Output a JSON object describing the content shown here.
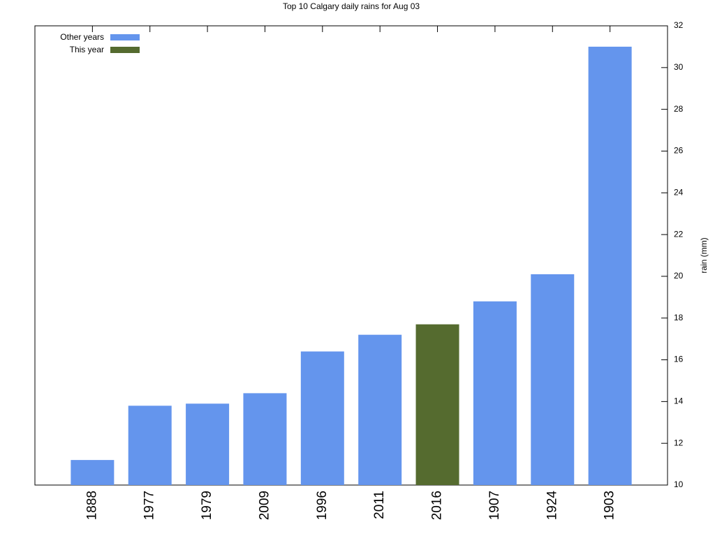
{
  "chart_data": {
    "type": "bar",
    "title": "Top 10 Calgary daily rains for Aug 03",
    "categories": [
      "1888",
      "1977",
      "1979",
      "2009",
      "1996",
      "2011",
      "2016",
      "1907",
      "1924",
      "1903"
    ],
    "series": [
      {
        "name": "Other years",
        "color": "#6495ed",
        "values": [
          11.2,
          13.8,
          13.9,
          14.4,
          16.4,
          17.2,
          null,
          18.8,
          20.1,
          31.0
        ]
      },
      {
        "name": "This year",
        "color": "#556b2f",
        "values": [
          null,
          null,
          null,
          null,
          null,
          null,
          17.7,
          null,
          null,
          null
        ]
      }
    ],
    "y_label": "rain (mm)",
    "ylim": [
      10,
      32
    ],
    "yticks": [
      10,
      12,
      14,
      16,
      18,
      20,
      22,
      24,
      26,
      28,
      30,
      32
    ],
    "y_axis_side": "right",
    "grid": false,
    "legend": "top-left"
  }
}
